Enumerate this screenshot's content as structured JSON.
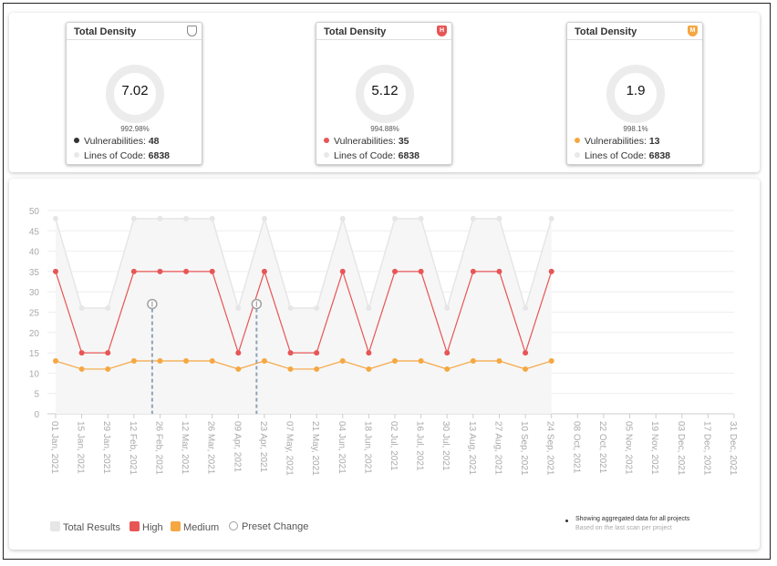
{
  "cards": [
    {
      "title": "Total Density",
      "value": "7.02",
      "percent": "992.98%",
      "vuln_label": "Vulnerabilities:",
      "vulnerabilities": 48,
      "loc_label": "Lines of Code:",
      "loc": 6838,
      "color": "#333333"
    },
    {
      "title": "Total Density",
      "badge": "H",
      "value": "5.12",
      "percent": "994.88%",
      "vuln_label": "Vulnerabilities:",
      "vulnerabilities": 35,
      "loc_label": "Lines of Code:",
      "loc": 6838,
      "color": "#e85555"
    },
    {
      "title": "Total Density",
      "badge": "M",
      "value": "1.9",
      "percent": "998.1%",
      "vuln_label": "Vulnerabilities:",
      "vulnerabilities": 13,
      "loc_label": "Lines of Code:",
      "loc": 6838,
      "color": "#f5a742"
    }
  ],
  "chart_data": {
    "type": "line",
    "categories": [
      "01 Jan, 2021",
      "15 Jan, 2021",
      "29 Jan, 2021",
      "12 Feb, 2021",
      "26 Feb, 2021",
      "12 Mar, 2021",
      "26 Mar, 2021",
      "09 Apr, 2021",
      "23 Apr, 2021",
      "07 May, 2021",
      "21 May, 2021",
      "04 Jun, 2021",
      "18 Jun, 2021",
      "02 Jul, 2021",
      "16 Jul, 2021",
      "30 Jul, 2021",
      "13 Aug, 2021",
      "27 Aug, 2021",
      "10 Sep, 2021",
      "24 Sep, 2021",
      "08 Oct, 2021",
      "22 Oct, 2021",
      "05 Nov, 2021",
      "19 Nov, 2021",
      "03 Dec, 2021",
      "17 Dec, 2021",
      "31 Dec, 2021"
    ],
    "series": [
      {
        "name": "Total Results",
        "color": "#e6e6e6",
        "area": true,
        "values": [
          48,
          26,
          26,
          48,
          48,
          48,
          48,
          26,
          48,
          26,
          26,
          48,
          26,
          48,
          48,
          26,
          48,
          48,
          26,
          48,
          null,
          null,
          null,
          null,
          null,
          null,
          null
        ]
      },
      {
        "name": "High",
        "color": "#e85555",
        "values": [
          35,
          15,
          15,
          35,
          35,
          35,
          35,
          15,
          35,
          15,
          15,
          35,
          15,
          35,
          35,
          15,
          35,
          35,
          15,
          35,
          null,
          null,
          null,
          null,
          null,
          null,
          null
        ]
      },
      {
        "name": "Medium",
        "color": "#f5a742",
        "values": [
          13,
          11,
          11,
          13,
          13,
          13,
          13,
          11,
          13,
          11,
          11,
          13,
          11,
          13,
          13,
          11,
          13,
          13,
          11,
          13,
          null,
          null,
          null,
          null,
          null,
          null,
          null
        ]
      }
    ],
    "preset_change": {
      "name": "Preset Change",
      "color": "#a0a0a0",
      "values": [
        27,
        27
      ]
    },
    "ylim": [
      0,
      50
    ],
    "yticks": [
      0,
      5,
      10,
      15,
      20,
      25,
      30,
      35,
      40,
      45,
      50
    ],
    "grid": true,
    "notes": [
      "Showing aggregated data for all projects",
      "Based on the last scan per project"
    ]
  }
}
